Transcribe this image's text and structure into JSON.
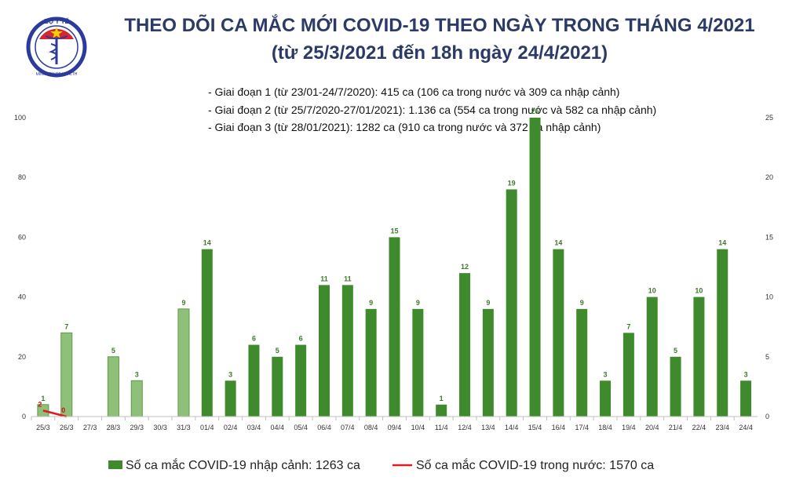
{
  "header": {
    "logo_text_top": "BỘ Y TẾ",
    "logo_text_bottom": "MINISTRY OF HEALTH",
    "title_line1": "THEO DÕI CA MẮC MỚI COVID-19 THEO NGÀY TRONG THÁNG 4/2021",
    "title_line2": "(từ 25/3/2021 đến 18h ngày 24/4/2021)"
  },
  "notes": [
    "- Giai đoạn 1 (từ 23/01-24/7/2020): 415 ca (106 ca trong nước và 309 ca nhập cảnh)",
    "- Giai đoạn 2 (từ 25/7/2020-27/01/2021): 1.136 ca (554 ca trong nước và 582 ca nhập cảnh)",
    "- Giai đoạn 3 (từ 28/01/2021): 1282 ca (910 ca trong nước và 372 ca nhập cảnh)"
  ],
  "colors": {
    "bar_march": "#8fc07a",
    "bar_march_border": "#5d9a48",
    "bar_april": "#3f8a2c",
    "line": "#e01b1b",
    "title": "#2b3a67"
  },
  "chart_data": {
    "type": "bar",
    "categories": [
      "25/3",
      "26/3",
      "27/3",
      "28/3",
      "29/3",
      "30/3",
      "31/3",
      "01/4",
      "02/4",
      "03/4",
      "04/4",
      "05/4",
      "06/4",
      "07/4",
      "08/4",
      "09/4",
      "10/4",
      "11/4",
      "12/4",
      "13/4",
      "14/4",
      "15/4",
      "16/4",
      "17/4",
      "18/4",
      "19/4",
      "20/4",
      "21/4",
      "22/4",
      "23/4",
      "24/4"
    ],
    "series": [
      {
        "name": "Số ca mắc COVID-19 nhập cảnh: 1263 ca",
        "type": "bar",
        "axis": "right",
        "values": [
          1,
          7,
          null,
          5,
          3,
          null,
          9,
          14,
          3,
          6,
          5,
          6,
          11,
          11,
          9,
          15,
          9,
          1,
          12,
          9,
          19,
          25,
          14,
          9,
          3,
          7,
          10,
          5,
          10,
          14,
          3
        ]
      },
      {
        "name": "Số ca mắc COVID-19 trong nước: 1570 ca",
        "type": "line",
        "axis": "left",
        "values": [
          2,
          0,
          null,
          null,
          null,
          null,
          null,
          null,
          null,
          null,
          null,
          null,
          null,
          null,
          null,
          null,
          null,
          null,
          null,
          null,
          null,
          null,
          null,
          null,
          null,
          null,
          null,
          null,
          null,
          null,
          null
        ],
        "labels": [
          "2",
          "0"
        ]
      }
    ],
    "y_left": {
      "ylim": [
        0,
        100
      ],
      "ticks": [
        "0",
        "20",
        "40",
        "60",
        "80",
        "100"
      ]
    },
    "y_right": {
      "ylim": [
        0,
        25
      ],
      "ticks": [
        "0",
        "5",
        "10",
        "15",
        "20",
        "25"
      ]
    },
    "legend_placement": "bottom",
    "grid": false
  }
}
